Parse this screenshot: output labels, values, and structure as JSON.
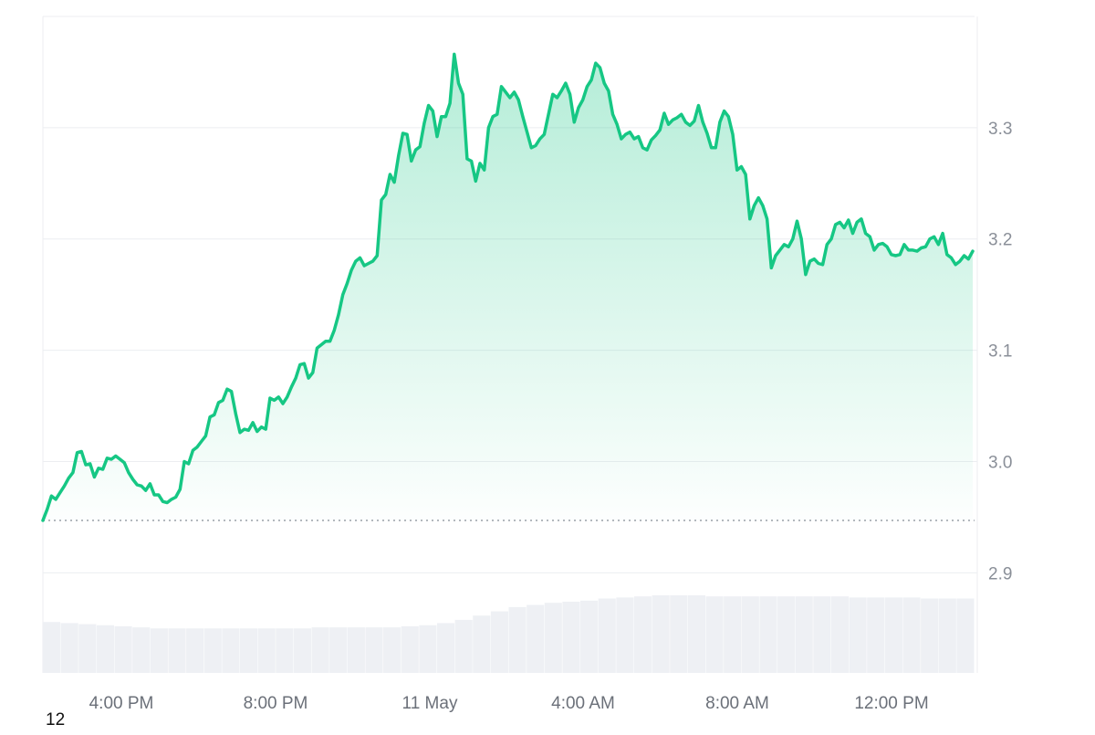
{
  "chart_data": {
    "type": "area",
    "x_ticks": [
      "4:00 PM",
      "8:00 PM",
      "11 May",
      "4:00 AM",
      "8:00 AM",
      "12:00 PM"
    ],
    "y_ticks": [
      "3.3",
      "3.2",
      "3.1",
      "3.0",
      "2.9"
    ],
    "ylim": [
      2.81,
      3.4
    ],
    "baseline": 2.947,
    "series": [
      {
        "values": [
          2.947,
          2.957,
          2.969,
          2.966,
          2.972,
          2.978,
          2.985,
          2.99,
          3.008,
          3.009,
          2.997,
          2.998,
          2.986,
          2.994,
          2.993,
          3.003,
          3.002,
          3.005,
          3.002,
          2.999,
          2.99,
          2.984,
          2.979,
          2.978,
          2.974,
          2.98,
          2.97,
          2.97,
          2.964,
          2.963,
          2.966,
          2.968,
          2.975,
          3.0,
          2.998,
          3.01,
          3.013,
          3.018,
          3.023,
          3.04,
          3.042,
          3.053,
          3.055,
          3.065,
          3.063,
          3.043,
          3.026,
          3.029,
          3.028,
          3.035,
          3.027,
          3.031,
          3.029,
          3.057,
          3.055,
          3.058,
          3.052,
          3.058,
          3.067,
          3.075,
          3.087,
          3.088,
          3.075,
          3.08,
          3.102,
          3.105,
          3.108,
          3.108,
          3.118,
          3.132,
          3.15,
          3.16,
          3.172,
          3.18,
          3.183,
          3.176,
          3.178,
          3.18,
          3.185,
          3.235,
          3.24,
          3.258,
          3.251,
          3.275,
          3.295,
          3.294,
          3.27,
          3.28,
          3.283,
          3.304,
          3.32,
          3.315,
          3.292,
          3.31,
          3.31,
          3.322,
          3.366,
          3.34,
          3.33,
          3.272,
          3.27,
          3.252,
          3.268,
          3.262,
          3.3,
          3.31,
          3.312,
          3.337,
          3.332,
          3.327,
          3.332,
          3.325,
          3.31,
          3.296,
          3.282,
          3.284,
          3.29,
          3.294,
          3.312,
          3.33,
          3.327,
          3.333,
          3.34,
          3.33,
          3.305,
          3.318,
          3.325,
          3.337,
          3.343,
          3.358,
          3.354,
          3.34,
          3.333,
          3.312,
          3.303,
          3.29,
          3.294,
          3.296,
          3.29,
          3.292,
          3.282,
          3.28,
          3.289,
          3.293,
          3.298,
          3.313,
          3.303,
          3.307,
          3.309,
          3.312,
          3.305,
          3.302,
          3.306,
          3.32,
          3.305,
          3.295,
          3.282,
          3.282,
          3.305,
          3.315,
          3.31,
          3.294,
          3.262,
          3.265,
          3.258,
          3.218,
          3.23,
          3.237,
          3.23,
          3.218,
          3.174,
          3.185,
          3.19,
          3.195,
          3.193,
          3.2,
          3.216,
          3.2,
          3.168,
          3.18,
          3.182,
          3.178,
          3.177,
          3.195,
          3.2,
          3.213,
          3.215,
          3.21,
          3.217,
          3.205,
          3.215,
          3.218,
          3.205,
          3.202,
          3.19,
          3.195,
          3.196,
          3.193,
          3.186,
          3.185,
          3.186,
          3.195,
          3.19,
          3.19,
          3.189,
          3.192,
          3.193,
          3.2,
          3.202,
          3.195,
          3.205,
          3.186,
          3.183,
          3.177,
          3.18,
          3.185,
          3.182,
          3.189
        ]
      }
    ],
    "volume": {
      "values": [
        22,
        21,
        20,
        19,
        18,
        17,
        16,
        16,
        16,
        16,
        16,
        16,
        16,
        16,
        16,
        17,
        17,
        17,
        17,
        17,
        18,
        19,
        21,
        24,
        28,
        32,
        36,
        38,
        40,
        41,
        42,
        44,
        45,
        46,
        47,
        47,
        47,
        46,
        46,
        46,
        46,
        46,
        46,
        46,
        46,
        45,
        45,
        45,
        45,
        44,
        44,
        44
      ],
      "max": 100
    },
    "grid": true,
    "legend": "none",
    "colors": {
      "line": "#16c784",
      "area_top": "#16c784",
      "volume": "#eef0f4",
      "grid": "#eceef1",
      "baseline": "#9aa0a8"
    }
  },
  "corner_label": "12"
}
